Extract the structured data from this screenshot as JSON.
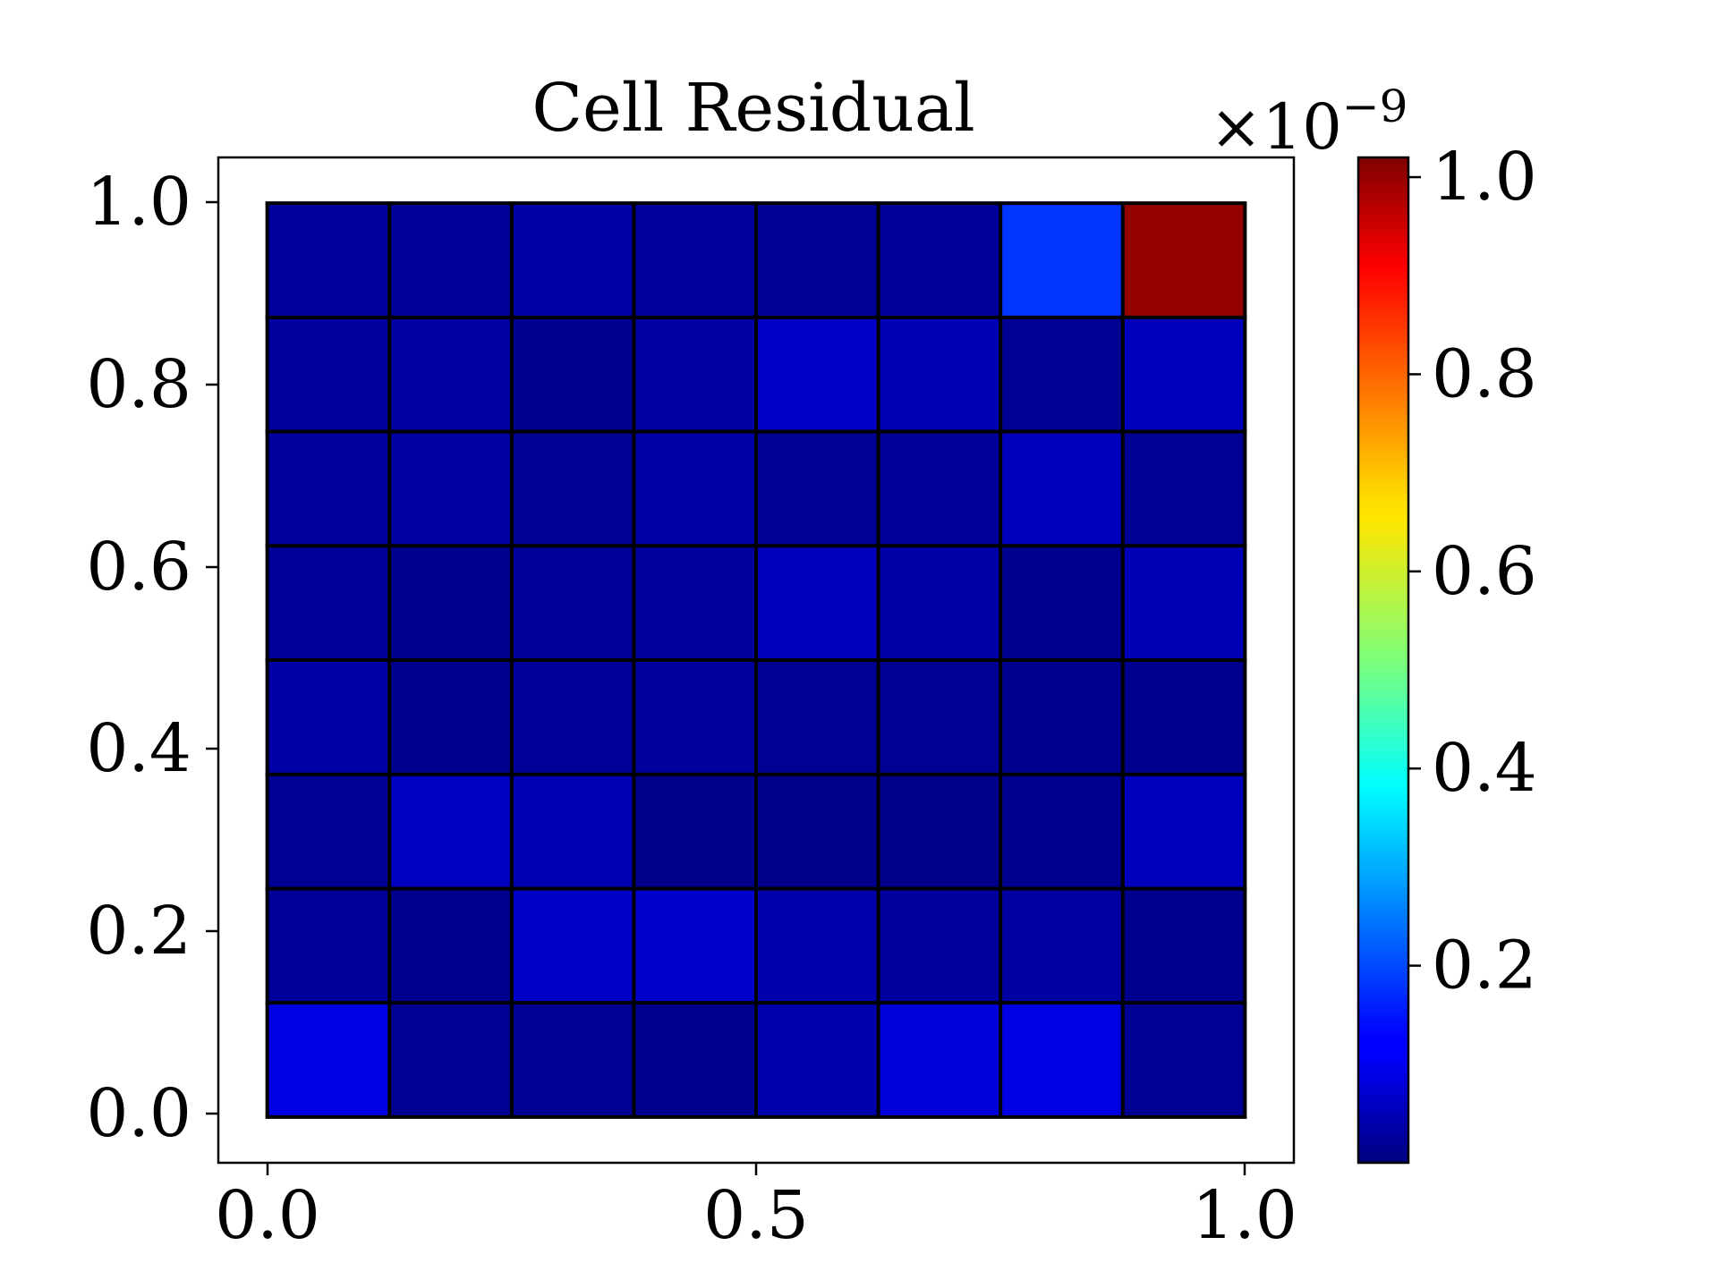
{
  "chart_data": {
    "type": "heatmap",
    "title": "Cell Residual",
    "xlabel": "",
    "ylabel": "",
    "xlim": [
      -0.05,
      1.05
    ],
    "ylim": [
      -0.05,
      1.05
    ],
    "x_ticks": [
      "0.0",
      "0.5",
      "1.0"
    ],
    "y_ticks": [
      "0.0",
      "0.2",
      "0.4",
      "0.6",
      "0.8",
      "1.0"
    ],
    "grid": false,
    "grid_size": [
      8,
      8
    ],
    "cell_edges": [
      0,
      0.125,
      0.25,
      0.375,
      0.5,
      0.625,
      0.75,
      0.875,
      1.0
    ],
    "value_scale": "1e-9",
    "colorbar": {
      "label_prefix": "×10",
      "label_exponent": "−9",
      "ticks": [
        "0.2",
        "0.4",
        "0.6",
        "0.8",
        "1.0"
      ],
      "vmin": 0.0,
      "vmax": 1.02,
      "colormap": "jet"
    },
    "values_rows_top_to_bottom": [
      [
        0.03,
        0.025,
        0.04,
        0.03,
        0.02,
        0.025,
        0.18,
        1.0
      ],
      [
        0.03,
        0.035,
        0.015,
        0.035,
        0.07,
        0.055,
        0.02,
        0.06
      ],
      [
        0.03,
        0.035,
        0.02,
        0.04,
        0.02,
        0.025,
        0.06,
        0.02
      ],
      [
        0.025,
        0.015,
        0.025,
        0.03,
        0.06,
        0.04,
        0.015,
        0.055
      ],
      [
        0.04,
        0.015,
        0.025,
        0.03,
        0.02,
        0.02,
        0.015,
        0.015
      ],
      [
        0.02,
        0.065,
        0.05,
        0.01,
        0.01,
        0.01,
        0.015,
        0.06
      ],
      [
        0.025,
        0.015,
        0.07,
        0.075,
        0.045,
        0.03,
        0.035,
        0.015
      ],
      [
        0.1,
        0.02,
        0.02,
        0.015,
        0.045,
        0.09,
        0.1,
        0.02
      ]
    ]
  }
}
